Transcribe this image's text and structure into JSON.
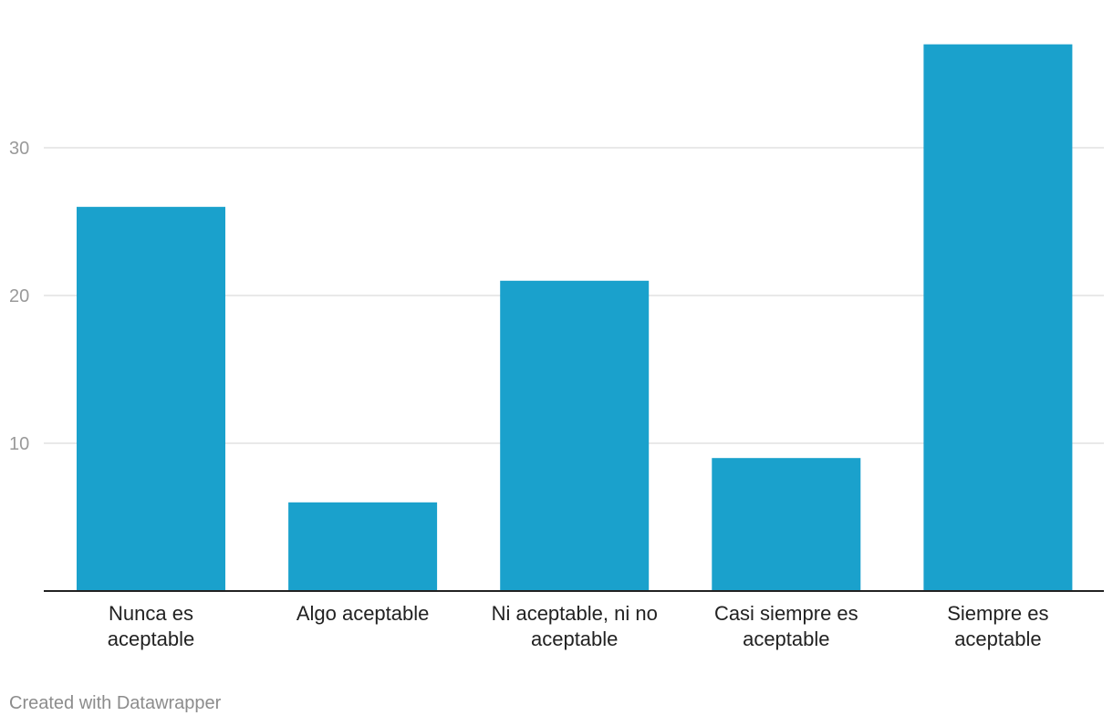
{
  "chart_data": {
    "type": "bar",
    "categories": [
      [
        "Nunca es",
        "aceptable"
      ],
      [
        "Algo aceptable"
      ],
      [
        "Ni aceptable, ni no",
        "aceptable"
      ],
      [
        "Casi siempre es",
        "aceptable"
      ],
      [
        "Siempre es",
        "aceptable"
      ]
    ],
    "values": [
      26,
      6,
      21,
      9,
      37
    ],
    "ylim": [
      0,
      37
    ],
    "yticks": [
      10,
      20,
      30
    ],
    "grid": true,
    "colors": {
      "bar": "#1aa1cc",
      "grid": "#e2e2e2",
      "axis": "#222222"
    }
  },
  "footer": {
    "credit": "Created with Datawrapper"
  }
}
